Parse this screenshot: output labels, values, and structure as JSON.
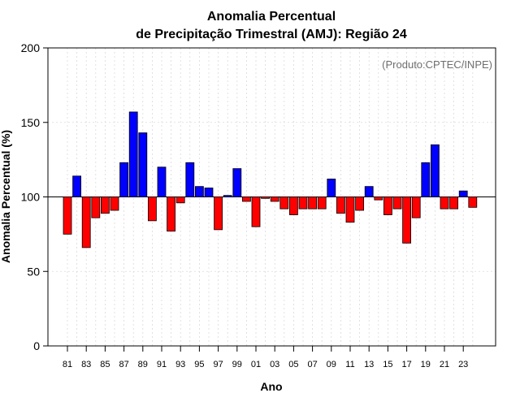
{
  "chart_data": {
    "type": "bar",
    "title": "Anomalia Percentual",
    "subtitle": "de Precipitação Trimestral (AMJ): Região 24",
    "xlabel": "Ano",
    "ylabel": "Anomalia Percentual (%)",
    "credit": "(Produto:CPTEC/INPE)",
    "baseline": 100,
    "ylim": [
      0,
      200
    ],
    "yticks": [
      "0",
      "50",
      "100",
      "150",
      "200"
    ],
    "xtick_labels": [
      "81",
      "83",
      "85",
      "87",
      "89",
      "91",
      "93",
      "95",
      "97",
      "99",
      "01",
      "03",
      "05",
      "07",
      "09",
      "11",
      "13",
      "15",
      "17",
      "19",
      "21",
      "23"
    ],
    "categories": [
      "1981",
      "1982",
      "1983",
      "1984",
      "1985",
      "1986",
      "1987",
      "1988",
      "1989",
      "1990",
      "1991",
      "1992",
      "1993",
      "1994",
      "1995",
      "1996",
      "1997",
      "1998",
      "1999",
      "2000",
      "2001",
      "2002",
      "2003",
      "2004",
      "2005",
      "2006",
      "2007",
      "2008",
      "2009",
      "2010",
      "2011",
      "2012",
      "2013",
      "2014",
      "2015",
      "2016",
      "2017",
      "2018",
      "2019",
      "2020",
      "2021",
      "2022",
      "2023",
      "2024"
    ],
    "values": [
      75,
      114,
      66,
      86,
      89,
      91,
      123,
      157,
      143,
      84,
      120,
      77,
      96,
      123,
      107,
      106,
      78,
      101,
      119,
      97,
      80,
      99,
      97,
      92,
      88,
      92,
      92,
      92,
      112,
      89,
      83,
      91,
      107,
      98,
      88,
      92,
      69,
      86,
      123,
      135,
      92,
      92,
      104,
      93
    ],
    "colors": {
      "above": "#0000ff",
      "below": "#ff0000"
    },
    "grid": true
  }
}
